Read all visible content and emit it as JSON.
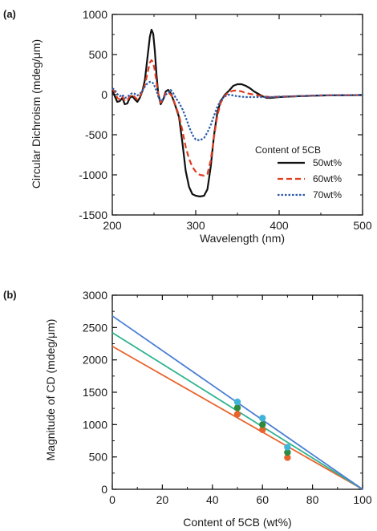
{
  "chart_data": [
    {
      "panel_label": "(a)",
      "type": "line",
      "xlabel": "Wavelength (nm)",
      "ylabel": "Circular Dichroism (mdeg/μm)",
      "xlim": [
        200,
        500
      ],
      "ylim": [
        -1500,
        1000
      ],
      "x_ticks": [
        200,
        300,
        400,
        500
      ],
      "y_ticks": [
        -1500,
        -1000,
        -500,
        0,
        500,
        1000
      ],
      "x_minor_step": 50,
      "y_minor_step": 250,
      "grid": false,
      "legend": {
        "title": "Content of 5CB",
        "placement": "lower-right"
      },
      "series": [
        {
          "name": "50wt%",
          "color": "#111111",
          "style": "solid",
          "points": [
            [
              200,
              50
            ],
            [
              203,
              -20
            ],
            [
              206,
              -90
            ],
            [
              209,
              -80
            ],
            [
              212,
              -40
            ],
            [
              215,
              -120
            ],
            [
              218,
              -110
            ],
            [
              221,
              -40
            ],
            [
              224,
              -20
            ],
            [
              227,
              -60
            ],
            [
              230,
              -90
            ],
            [
              233,
              -40
            ],
            [
              236,
              40
            ],
            [
              239,
              180
            ],
            [
              242,
              450
            ],
            [
              245,
              720
            ],
            [
              247,
              810
            ],
            [
              249,
              760
            ],
            [
              251,
              550
            ],
            [
              253,
              250
            ],
            [
              255,
              20
            ],
            [
              258,
              -120
            ],
            [
              261,
              -60
            ],
            [
              264,
              40
            ],
            [
              267,
              60
            ],
            [
              270,
              20
            ],
            [
              273,
              -60
            ],
            [
              276,
              -150
            ],
            [
              280,
              -280
            ],
            [
              284,
              -600
            ],
            [
              288,
              -950
            ],
            [
              292,
              -1150
            ],
            [
              296,
              -1240
            ],
            [
              300,
              -1260
            ],
            [
              305,
              -1270
            ],
            [
              310,
              -1260
            ],
            [
              314,
              -1180
            ],
            [
              318,
              -900
            ],
            [
              322,
              -500
            ],
            [
              326,
              -220
            ],
            [
              330,
              -80
            ],
            [
              335,
              0
            ],
            [
              340,
              50
            ],
            [
              345,
              110
            ],
            [
              350,
              130
            ],
            [
              355,
              130
            ],
            [
              360,
              110
            ],
            [
              365,
              80
            ],
            [
              370,
              40
            ],
            [
              375,
              10
            ],
            [
              380,
              -20
            ],
            [
              385,
              -40
            ],
            [
              390,
              -40
            ],
            [
              400,
              -30
            ],
            [
              420,
              -20
            ],
            [
              450,
              -10
            ],
            [
              500,
              -5
            ]
          ]
        },
        {
          "name": "60wt%",
          "color": "#e03c1f",
          "style": "dashed",
          "points": [
            [
              200,
              80
            ],
            [
              203,
              30
            ],
            [
              206,
              -40
            ],
            [
              209,
              -60
            ],
            [
              212,
              -20
            ],
            [
              215,
              -80
            ],
            [
              218,
              -70
            ],
            [
              221,
              -20
            ],
            [
              224,
              0
            ],
            [
              227,
              -30
            ],
            [
              230,
              -60
            ],
            [
              233,
              -20
            ],
            [
              236,
              40
            ],
            [
              239,
              120
            ],
            [
              242,
              260
            ],
            [
              245,
              400
            ],
            [
              247,
              430
            ],
            [
              249,
              400
            ],
            [
              251,
              300
            ],
            [
              253,
              150
            ],
            [
              255,
              20
            ],
            [
              258,
              -100
            ],
            [
              261,
              -60
            ],
            [
              264,
              20
            ],
            [
              267,
              30
            ],
            [
              270,
              0
            ],
            [
              273,
              -50
            ],
            [
              276,
              -140
            ],
            [
              280,
              -260
            ],
            [
              284,
              -450
            ],
            [
              288,
              -650
            ],
            [
              292,
              -800
            ],
            [
              296,
              -900
            ],
            [
              300,
              -960
            ],
            [
              305,
              -1000
            ],
            [
              310,
              -1010
            ],
            [
              314,
              -990
            ],
            [
              318,
              -820
            ],
            [
              322,
              -520
            ],
            [
              326,
              -260
            ],
            [
              330,
              -100
            ],
            [
              335,
              -10
            ],
            [
              340,
              30
            ],
            [
              345,
              50
            ],
            [
              350,
              50
            ],
            [
              355,
              40
            ],
            [
              360,
              20
            ],
            [
              370,
              0
            ],
            [
              380,
              -20
            ],
            [
              390,
              -30
            ],
            [
              400,
              -25
            ],
            [
              420,
              -20
            ],
            [
              450,
              -10
            ],
            [
              500,
              -5
            ]
          ]
        },
        {
          "name": "70wt%",
          "color": "#2b5aa8",
          "style": "dotted",
          "points": [
            [
              200,
              80
            ],
            [
              203,
              60
            ],
            [
              206,
              10
            ],
            [
              209,
              -20
            ],
            [
              212,
              0
            ],
            [
              215,
              -40
            ],
            [
              218,
              -30
            ],
            [
              221,
              0
            ],
            [
              224,
              20
            ],
            [
              227,
              10
            ],
            [
              230,
              -10
            ],
            [
              233,
              10
            ],
            [
              236,
              50
            ],
            [
              239,
              100
            ],
            [
              242,
              140
            ],
            [
              245,
              160
            ],
            [
              247,
              160
            ],
            [
              249,
              140
            ],
            [
              251,
              100
            ],
            [
              253,
              50
            ],
            [
              255,
              -20
            ],
            [
              258,
              -80
            ],
            [
              261,
              -60
            ],
            [
              264,
              0
            ],
            [
              267,
              20
            ],
            [
              270,
              60
            ],
            [
              273,
              20
            ],
            [
              276,
              -40
            ],
            [
              280,
              -100
            ],
            [
              284,
              -180
            ],
            [
              288,
              -280
            ],
            [
              292,
              -400
            ],
            [
              296,
              -500
            ],
            [
              300,
              -560
            ],
            [
              305,
              -570
            ],
            [
              310,
              -540
            ],
            [
              314,
              -470
            ],
            [
              318,
              -380
            ],
            [
              322,
              -260
            ],
            [
              326,
              -150
            ],
            [
              330,
              -70
            ],
            [
              335,
              -20
            ],
            [
              340,
              0
            ],
            [
              345,
              -10
            ],
            [
              350,
              -20
            ],
            [
              360,
              -30
            ],
            [
              370,
              -30
            ],
            [
              380,
              -30
            ],
            [
              390,
              -30
            ],
            [
              400,
              -25
            ],
            [
              420,
              -20
            ],
            [
              450,
              -10
            ],
            [
              500,
              -5
            ]
          ]
        }
      ]
    },
    {
      "panel_label": "(b)",
      "type": "scatter",
      "xlabel": "Content of 5CB (wt%)",
      "ylabel": "Magnitude of CD (mdeg/μm)",
      "xlim": [
        0,
        100
      ],
      "ylim": [
        0,
        3000
      ],
      "x_ticks": [
        0,
        20,
        40,
        60,
        80,
        100
      ],
      "y_ticks": [
        0,
        500,
        1000,
        1500,
        2000,
        2500,
        3000
      ],
      "x_minor_step": 10,
      "y_minor_step": 250,
      "grid": false,
      "series": [
        {
          "color": "#e8642c",
          "points": [
            [
              50,
              1160
            ],
            [
              60,
              920
            ],
            [
              70,
              490
            ]
          ],
          "fit": [
            [
              0,
              2210
            ],
            [
              100,
              0
            ]
          ]
        },
        {
          "color": "#2e8a3e",
          "points": [
            [
              50,
              1260
            ],
            [
              60,
              1000
            ],
            [
              70,
              570
            ]
          ],
          "fit": [
            [
              0,
              2420
            ],
            [
              100,
              0
            ]
          ]
        },
        {
          "color": "#3fb3d8",
          "points": [
            [
              50,
              1350
            ],
            [
              60,
              1100
            ],
            [
              70,
              650
            ]
          ],
          "fit": [
            [
              0,
              2680
            ],
            [
              100,
              0
            ]
          ]
        }
      ],
      "fit_line_colors": [
        "#e8642c",
        "#2fb38f",
        "#4a7fd4"
      ]
    }
  ]
}
